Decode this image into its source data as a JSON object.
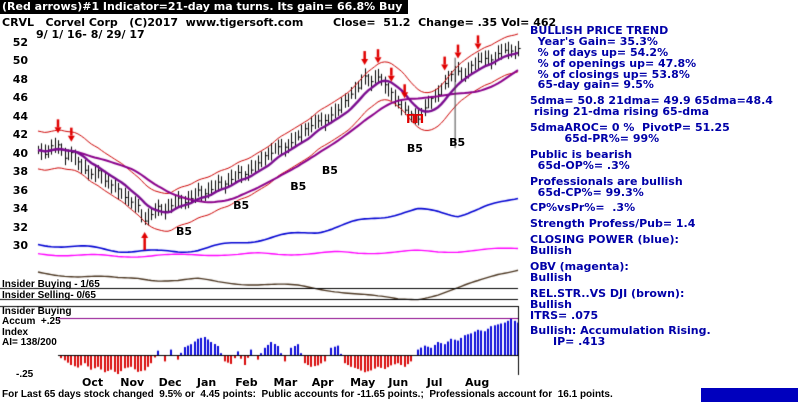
{
  "header": {
    "banner": "(Red arrows)#1 Indicator=21-day ma turns. Its gain= 66.8% Buy",
    "ticker": "CRVL   Corvel Corp   (C)2017  www.tigersoft.com",
    "quote": "Close=  51.2  Change= .35 Vol= 462",
    "date_range": "9/ 1/ 16- 8/ 29/ 17"
  },
  "right_panel": {
    "lines": [
      "BULLISH PRICE TREND",
      "  Year's Gain= 35.3%",
      "  % of days up= 54.2%",
      "  % of openings up= 47.8%",
      "  % of closings up= 53.8%",
      "  65-day gain= 9.5%",
      "",
      "5dma= 50.8 21dma= 49.9 65dma=48.4",
      " rising 21-dma rising 65-dma",
      "",
      "5dmaAROC= 0 %  PivotP= 51.25",
      "         65d-PR%= 99%",
      "",
      "Public is bearish",
      "  65d-OP%= .3%",
      "",
      "Professionals are bullish",
      "  65d-CP%= 99.3%",
      "",
      "CP%vsPr%=  .3%",
      "",
      "Strength Profess/Pub= 1.4",
      "",
      "CLOSING POWER (blue):",
      "Bullish",
      "",
      "OBV (magenta):",
      "Bullish",
      "",
      "REL.STR..VS DJI (brown):",
      "Bullish",
      "ITRS= .075",
      "",
      "Bullish: Accumulation Rising.",
      "      IP= .413"
    ]
  },
  "overlays": {
    "insider_buying": "Insider Buying - 1/65",
    "insider_selling": "Insider Selling- 0/65",
    "accum_lines": [
      "Insider Buying",
      "Accum  +.25",
      "Index",
      "AI= 138/200"
    ],
    "minus_level": "-.25"
  },
  "footer": {
    "summary": "For Last 65 days stock changed  9.5% or  4.45 points:  Public accounts for -11.65 points.;  Professionals account for  16.1 points."
  },
  "colors": {
    "panel_text": "#0000A8",
    "banner_bg": "#000000",
    "banner_fg": "#FFFFFF",
    "bars": "#000000",
    "ma21": "#7A0B8F",
    "ma65": "#8B008B",
    "envelope": "#CC0000",
    "closing_power": "#0000D2",
    "obv": "#FF00FF",
    "rel_str": "#4B3621",
    "accum_up": "#0808D8",
    "accum_down": "#D80808",
    "signal": "#E00000",
    "ref_line": "#000000",
    "accum_ref": "#880088",
    "footer_highlight": "#0000BE"
  },
  "chart_data": {
    "type": "line",
    "subtype": "ohlc_price_with_indicator_panels",
    "title": "CRVL Corvel Corp 9/1/16 - 8/29/17",
    "xlabel": "",
    "ylabel": "Price",
    "ylim": [
      30,
      52
    ],
    "price_axis": [
      52,
      50,
      48,
      46,
      44,
      42,
      40,
      38,
      36,
      34,
      32,
      30
    ],
    "months": [
      "Oct",
      "Nov",
      "Dec",
      "Jan",
      "Feb",
      "Mar",
      "Apr",
      "May",
      "Jun",
      "Jul",
      "Aug"
    ],
    "price_close": [
      40.3,
      40.0,
      40.6,
      40.8,
      39.6,
      39.9,
      38.9,
      38.3,
      37.6,
      37.9,
      37.1,
      36.5,
      35.9,
      35.3,
      34.7,
      34.1,
      32.7,
      33.4,
      34.0,
      33.7,
      34.4,
      34.9,
      34.6,
      35.2,
      35.8,
      35.5,
      36.2,
      36.7,
      36.5,
      37.3,
      37.8,
      37.5,
      38.3,
      38.9,
      39.5,
      40.1,
      40.7,
      40.4,
      41.2,
      41.8,
      42.4,
      43.0,
      43.6,
      43.3,
      44.1,
      44.8,
      45.5,
      46.3,
      47.2,
      48.2,
      47.6,
      48.4,
      47.3,
      46.4,
      45.4,
      44.6,
      44.0,
      43.8,
      44.9,
      45.7,
      46.4,
      47.6,
      48.3,
      48.9,
      48.4,
      49.3,
      49.9,
      50.4,
      49.9,
      50.7,
      51.3,
      50.9,
      51.2
    ],
    "signals": {
      "sell_idx": [
        3,
        5,
        49,
        51,
        53,
        55,
        61,
        63,
        66
      ],
      "buy_idx": [
        16
      ]
    },
    "pause_marks": [
      [
        0.777,
        44.2
      ],
      [
        0.794,
        44.2
      ]
    ],
    "b5_marks": [
      [
        0.302,
        31.5
      ],
      [
        0.421,
        34.3
      ],
      [
        0.54,
        36.4
      ],
      [
        0.606,
        38.1
      ],
      [
        0.783,
        40.5
      ],
      [
        0.871,
        41.2
      ]
    ],
    "event_line": [
      0.869,
      50.3,
      40.5
    ],
    "closing_power": {
      "legend": "CLOSING POWER (blue)",
      "values": [
        14,
        13,
        11,
        9,
        7,
        6,
        5,
        6,
        8,
        12,
        16,
        20,
        24,
        27,
        30,
        36,
        42,
        47,
        52,
        56,
        54,
        50,
        56,
        64,
        72
      ]
    },
    "obv": {
      "legend": "OBV (magenta)",
      "values": [
        45,
        42,
        40,
        38,
        36,
        38,
        40,
        39,
        41,
        43,
        42,
        44,
        43,
        45,
        46,
        48,
        47,
        49,
        50,
        52,
        51,
        53,
        55,
        58,
        62
      ]
    },
    "rel_str_dji": {
      "legend": "REL.STR..VS DJI (brown)",
      "values": [
        60,
        56,
        52,
        50,
        48,
        50,
        46,
        44,
        46,
        42,
        40,
        38,
        36,
        34,
        30,
        26,
        20,
        14,
        10,
        12,
        20,
        30,
        42,
        56,
        66
      ]
    },
    "accum_index": {
      "legend": "Accum Index AI= 138/200",
      "values": [
        0,
        0,
        0,
        0,
        -0.12,
        -0.25,
        -0.32,
        -0.2,
        -0.38,
        -0.3,
        -0.45,
        -0.38,
        -0.5,
        -0.34,
        -0.3,
        -0.44,
        -0.4,
        -0.2,
        0.12,
        -0.15,
        0.15,
        -0.1,
        0.22,
        0.3,
        0.45,
        0.5,
        0.36,
        0.25,
        -0.15,
        -0.22,
        0.1,
        -0.25,
        0.15,
        -0.1,
        0.2,
        0.36,
        0.25,
        -0.15,
        0.2,
        0.3,
        -0.2,
        -0.3,
        -0.26,
        -0.15,
        0.2,
        0.26,
        -0.2,
        -0.3,
        -0.36,
        -0.45,
        -0.4,
        -0.3,
        -0.36,
        -0.26,
        -0.2,
        -0.3,
        -0.15,
        0.15,
        0.26,
        0.2,
        0.36,
        0.3,
        0.45,
        0.4,
        0.55,
        0.6,
        0.7,
        0.66,
        0.8,
        0.85,
        0.9,
        1.0,
        0.9
      ]
    }
  }
}
